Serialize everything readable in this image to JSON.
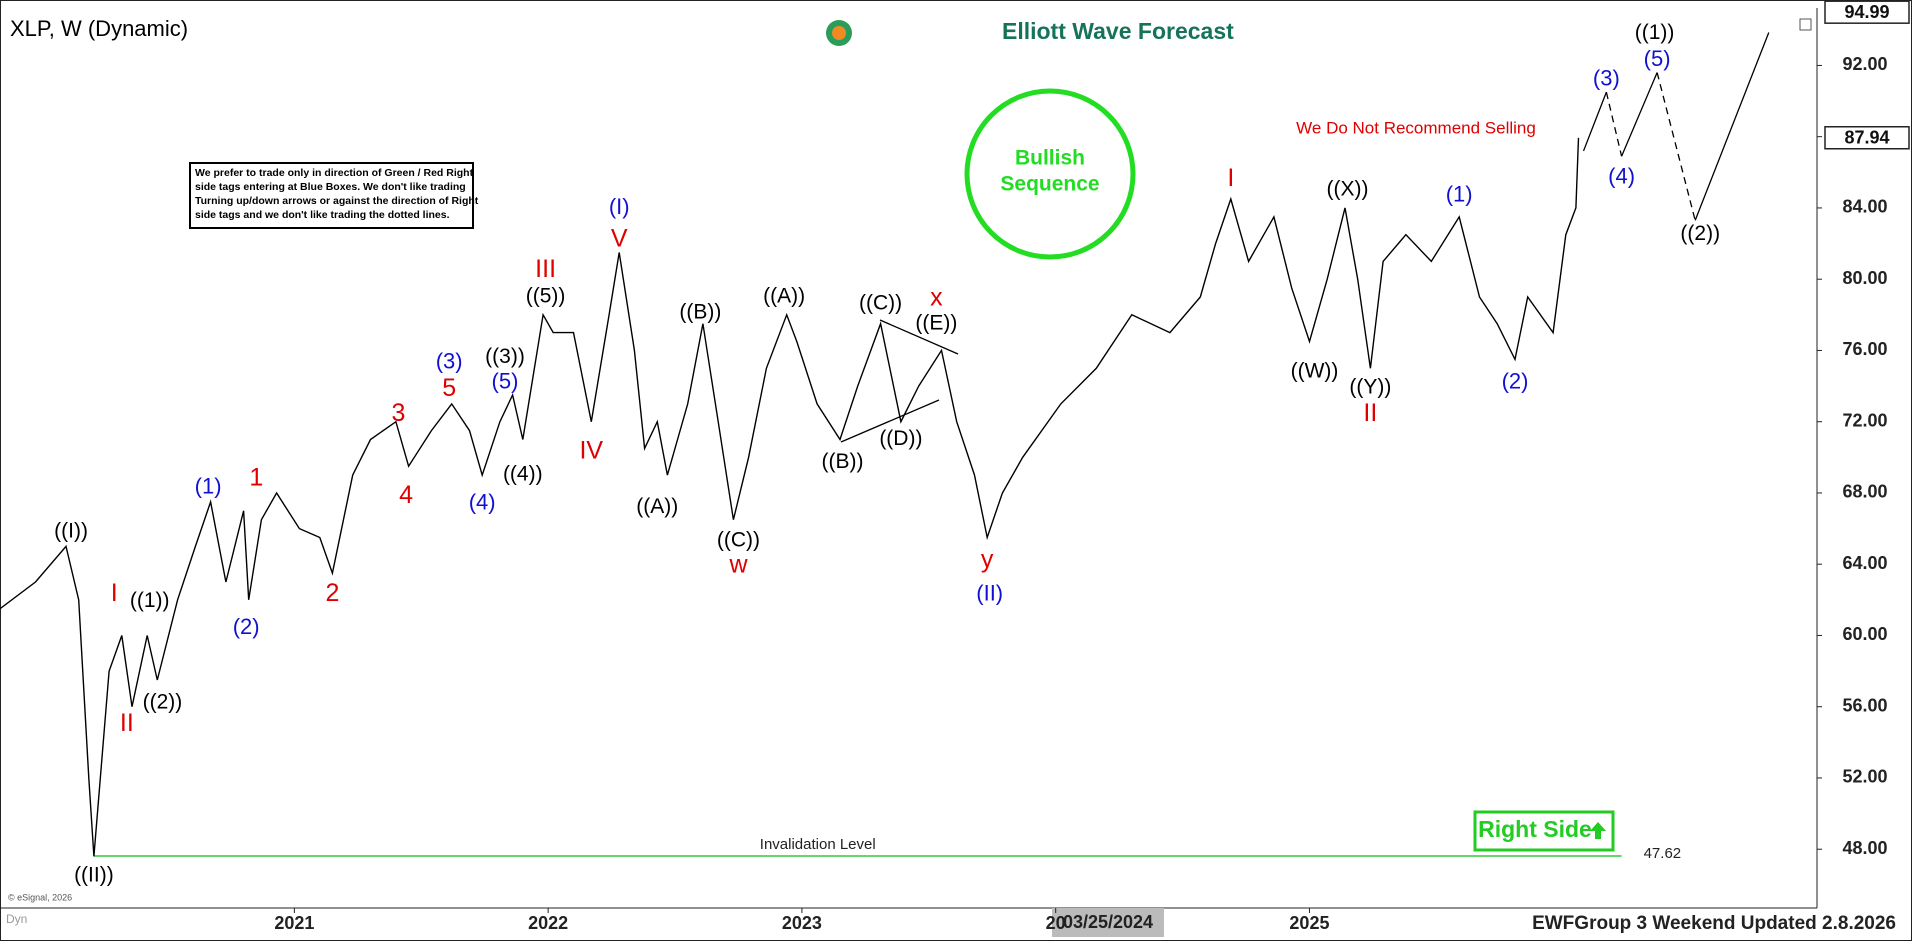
{
  "header": {
    "logo": "Elliott Wave Forecast",
    "disclaimer": [
      "We prefer to trade only in direction of Green / Red Right",
      "side tags entering at Blue Boxes. We don't like trading",
      "Turning up/down arrows or against the direction of Right",
      "side tags and we don't like trading the dotted lines."
    ],
    "bullish": [
      "Bullish",
      "Sequence"
    ],
    "warning": "We Do Not Recommend Selling",
    "right_side": "Right Side",
    "footer": "EWFGroup 3 Weekend Updated 2.8.2026",
    "copyright": "© eSignal, 2026",
    "dyn": "Dyn",
    "crosshair": "03/25/2024"
  },
  "chart_data": {
    "type": "line",
    "title": "XLP, W (Dynamic)",
    "xlim": [
      2019.84,
      2027.0
    ],
    "ylim": [
      44.7,
      95.0
    ],
    "xticks": [
      2021,
      2022,
      2023,
      {
        "value": 2024,
        "label": "20"
      },
      2025
    ],
    "yticks": [
      {
        "value": 48,
        "label": "48.00"
      },
      {
        "value": 52,
        "label": "52.00"
      },
      {
        "value": 56,
        "label": "56.00"
      },
      {
        "value": 60,
        "label": "60.00"
      },
      {
        "value": 64,
        "label": "64.00"
      },
      {
        "value": 68,
        "label": "68.00"
      },
      {
        "value": 72,
        "label": "72.00"
      },
      {
        "value": 76,
        "label": "76.00"
      },
      {
        "value": 80,
        "label": "80.00"
      },
      {
        "value": 84,
        "label": "84.00"
      },
      {
        "value": 88,
        "label": "88.00"
      },
      {
        "value": 92,
        "label": "92.00"
      }
    ],
    "series": [
      {
        "color": "#000000",
        "x": [
          2019.84,
          2019.98,
          2020.1,
          2020.15,
          2020.19,
          2020.21,
          2020.27,
          2020.32,
          2020.36,
          2020.42,
          2020.46,
          2020.54,
          2020.61,
          2020.67,
          2020.73,
          2020.8,
          2020.82,
          2020.87,
          2020.93,
          2021.02,
          2021.1,
          2021.15,
          2021.23,
          2021.3,
          2021.4,
          2021.45,
          2021.54,
          2021.62,
          2021.69,
          2021.74,
          2021.81,
          2021.86,
          2021.9,
          2021.98,
          2022.02,
          2022.1,
          2022.17,
          2022.24,
          2022.28,
          2022.34,
          2022.38,
          2022.43,
          2022.47,
          2022.55,
          2022.61,
          2022.67,
          2022.73,
          2022.79,
          2022.86,
          2022.94,
          2022.98,
          2023.06,
          2023.15,
          2023.22,
          2023.31,
          2023.39,
          2023.46,
          2023.55,
          2023.61,
          2023.68,
          2023.73,
          2023.79,
          2023.87,
          2024.02,
          2024.16,
          2024.3,
          2024.45,
          2024.57,
          2024.63,
          2024.69,
          2024.76,
          2024.86,
          2024.93,
          2025.0,
          2025.07,
          2025.14,
          2025.19,
          2025.24,
          2025.29,
          2025.38,
          2025.48,
          2025.59,
          2025.67,
          2025.74,
          2025.81,
          2025.86,
          2025.96,
          2026.01,
          2026.05,
          2026.06
        ],
        "values": [
          61.5,
          63,
          65,
          62,
          52,
          47.6,
          58,
          60,
          56,
          60,
          57.5,
          62,
          65,
          67.5,
          63,
          67,
          62,
          66.5,
          68,
          66,
          65.5,
          63.5,
          69,
          71,
          72,
          69.5,
          71.5,
          73,
          71.5,
          69,
          72,
          73.5,
          71,
          78,
          77,
          77,
          72,
          78,
          81.5,
          76,
          70.5,
          72,
          69,
          73,
          77.5,
          72,
          66.5,
          70,
          75,
          78,
          76.5,
          73,
          71,
          74,
          77.5,
          72,
          74,
          76,
          72,
          69,
          65.5,
          68,
          70,
          73,
          75,
          78,
          77,
          79,
          82,
          84.5,
          81,
          83.5,
          79.5,
          76.5,
          80,
          84,
          80,
          75,
          81,
          82.5,
          81,
          83.5,
          79,
          77.5,
          75.5,
          79,
          77,
          82.5,
          84,
          87.94
        ]
      },
      {
        "color": "#000000",
        "x": [
          2026.08,
          2026.17,
          2026.23,
          2026.37,
          2026.52,
          2026.81
        ],
        "values": [
          87.2,
          90.5,
          86.9,
          91.6,
          83.3,
          93.85
        ]
      }
    ],
    "annotations": [
      {
        "text": "((I))",
        "color": "#000000",
        "x": 2020.12,
        "y": 65.8
      },
      {
        "text": "((II))",
        "color": "#000000",
        "x": 2020.21,
        "y": 46.5
      },
      {
        "text": "I",
        "color": "#e00000",
        "x": 2020.29,
        "y": 62.3
      },
      {
        "text": "II",
        "color": "#e00000",
        "x": 2020.34,
        "y": 55.0
      },
      {
        "text": "((1))",
        "color": "#000000",
        "x": 2020.43,
        "y": 61.9
      },
      {
        "text": "((2))",
        "color": "#000000",
        "x": 2020.48,
        "y": 56.2
      },
      {
        "text": "(1)",
        "color": "#1010d0",
        "x": 2020.66,
        "y": 68.3
      },
      {
        "text": "(2)",
        "color": "#1010d0",
        "x": 2020.81,
        "y": 60.4
      },
      {
        "text": "1",
        "color": "#e00000",
        "x": 2020.85,
        "y": 68.8
      },
      {
        "text": "2",
        "color": "#e00000",
        "x": 2021.15,
        "y": 62.3
      },
      {
        "text": "3",
        "color": "#e00000",
        "x": 2021.41,
        "y": 72.4
      },
      {
        "text": "4",
        "color": "#e00000",
        "x": 2021.44,
        "y": 67.8
      },
      {
        "text": "(3)",
        "color": "#1010d0",
        "x": 2021.61,
        "y": 75.3
      },
      {
        "text": "5",
        "color": "#e00000",
        "x": 2021.61,
        "y": 73.8
      },
      {
        "text": "(4)",
        "color": "#1010d0",
        "x": 2021.74,
        "y": 67.4
      },
      {
        "text": "(5)",
        "color": "#1010d0",
        "x": 2021.83,
        "y": 74.2
      },
      {
        "text": "((3))",
        "color": "#000000",
        "x": 2021.83,
        "y": 75.6
      },
      {
        "text": "((4))",
        "color": "#000000",
        "x": 2021.9,
        "y": 69.0
      },
      {
        "text": "((5))",
        "color": "#000000",
        "x": 2021.99,
        "y": 79.0
      },
      {
        "text": "III",
        "color": "#e00000",
        "x": 2021.99,
        "y": 80.5
      },
      {
        "text": "IV",
        "color": "#e00000",
        "x": 2022.17,
        "y": 70.3
      },
      {
        "text": "(I)",
        "color": "#1010d0",
        "x": 2022.28,
        "y": 84.0
      },
      {
        "text": "V",
        "color": "#e00000",
        "x": 2022.28,
        "y": 82.2
      },
      {
        "text": "((A))",
        "color": "#000000",
        "x": 2022.43,
        "y": 67.2
      },
      {
        "text": "((B))",
        "color": "#000000",
        "x": 2022.6,
        "y": 78.1
      },
      {
        "text": "((C))",
        "color": "#000000",
        "x": 2022.75,
        "y": 65.3
      },
      {
        "text": "w",
        "color": "#e00000",
        "x": 2022.75,
        "y": 63.9
      },
      {
        "text": "((A))",
        "color": "#000000",
        "x": 2022.93,
        "y": 79.0
      },
      {
        "text": "((B))",
        "color": "#000000",
        "x": 2023.16,
        "y": 69.7
      },
      {
        "text": "((C))",
        "color": "#000000",
        "x": 2023.31,
        "y": 78.6
      },
      {
        "text": "x",
        "color": "#e00000",
        "x": 2023.53,
        "y": 78.9
      },
      {
        "text": "((E))",
        "color": "#000000",
        "x": 2023.53,
        "y": 77.5
      },
      {
        "text": "((D))",
        "color": "#000000",
        "x": 2023.39,
        "y": 71.0
      },
      {
        "text": "y",
        "color": "#e00000",
        "x": 2023.73,
        "y": 64.2
      },
      {
        "text": "(II)",
        "color": "#1010d0",
        "x": 2023.74,
        "y": 62.3
      },
      {
        "text": "I",
        "color": "#e00000",
        "x": 2024.69,
        "y": 85.6
      },
      {
        "text": "((X))",
        "color": "#000000",
        "x": 2025.15,
        "y": 85.0
      },
      {
        "text": "((W))",
        "color": "#000000",
        "x": 2025.02,
        "y": 74.8
      },
      {
        "text": "((Y))",
        "color": "#000000",
        "x": 2025.24,
        "y": 73.9
      },
      {
        "text": "II",
        "color": "#e00000",
        "x": 2025.24,
        "y": 72.4
      },
      {
        "text": "(1)",
        "color": "#1010d0",
        "x": 2025.59,
        "y": 84.7
      },
      {
        "text": "(2)",
        "color": "#1010d0",
        "x": 2025.81,
        "y": 74.2
      },
      {
        "text": "(3)",
        "color": "#1010d0",
        "x": 2026.17,
        "y": 91.2
      },
      {
        "text": "(4)",
        "color": "#1010d0",
        "x": 2026.23,
        "y": 85.7
      },
      {
        "text": "(5)",
        "color": "#1010d0",
        "x": 2026.37,
        "y": 92.3
      },
      {
        "text": "((1))",
        "color": "#000000",
        "x": 2026.36,
        "y": 93.8
      },
      {
        "text": "((2))",
        "color": "#000000",
        "x": 2026.54,
        "y": 82.5
      }
    ],
    "price_labels": [
      {
        "value": 94.99,
        "label": "94.99"
      },
      {
        "value": 87.94,
        "label": "87.94"
      }
    ],
    "invalidation": {
      "label": "Invalidation Level",
      "value": 47.62,
      "value_label": "47.62",
      "color": "#33cc33",
      "x_start": 2020.21,
      "x_end": 2026.23
    }
  }
}
